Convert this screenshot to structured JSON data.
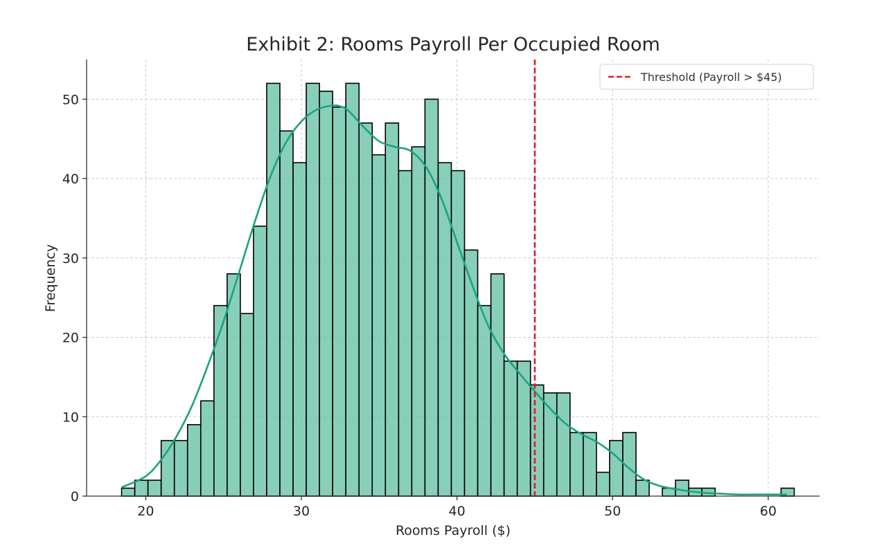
{
  "chart_data": {
    "type": "bar",
    "title": "Exhibit 2: Rooms Payroll Per Occupied Room",
    "xlabel": "Rooms Payroll ($)",
    "ylabel": "Frequency",
    "xlim": [
      16.2,
      63.3
    ],
    "ylim": [
      0,
      55
    ],
    "xticks": [
      20,
      30,
      40,
      50,
      60
    ],
    "yticks": [
      0,
      10,
      20,
      30,
      40,
      50
    ],
    "grid": true,
    "legend_position": "top-right",
    "bin_start": 18.45,
    "bin_width": 0.8475,
    "series": [
      {
        "values": [
          1,
          2,
          2,
          7,
          7,
          9,
          12,
          24,
          28,
          23,
          34,
          52,
          46,
          42,
          52,
          51,
          49,
          52,
          47,
          43,
          47,
          41,
          44,
          50,
          42,
          41,
          31,
          24,
          28,
          17,
          17,
          14,
          13,
          13,
          8,
          8,
          3,
          7,
          8,
          2,
          0,
          1,
          2,
          1,
          1,
          0,
          0,
          0,
          0,
          0,
          1
        ],
        "color": "#66c2a5",
        "fill_opacity": 0.78,
        "edge_color": "#000000"
      }
    ],
    "kde": {
      "color": "#1aa37e",
      "x": [
        18.45,
        20,
        21,
        22,
        23,
        24,
        25,
        26,
        27,
        28,
        29,
        30,
        31,
        32,
        32.5,
        33,
        34,
        35,
        36,
        37,
        38,
        39,
        40,
        41,
        42,
        43,
        44,
        45,
        46,
        47,
        48,
        49,
        50,
        51,
        52,
        53,
        54,
        55,
        56,
        57,
        58,
        59,
        60,
        61.2
      ],
      "y": [
        1.1,
        2.5,
        4.6,
        7.6,
        11.5,
        16.5,
        22,
        28.2,
        34.5,
        40.2,
        44.5,
        47.2,
        48.7,
        49.2,
        49.1,
        48.6,
        46.5,
        44.7,
        44,
        43.5,
        41.5,
        37.5,
        32,
        26.5,
        21.5,
        18,
        15.5,
        13.2,
        11,
        9.1,
        7.8,
        6.8,
        5.4,
        3.6,
        2.1,
        1.3,
        0.9,
        0.6,
        0.4,
        0.3,
        0.2,
        0.2,
        0.2,
        0.2
      ]
    },
    "threshold": {
      "x": 45,
      "color": "#e31a1c",
      "label": "Threshold (Payroll > $45)"
    }
  }
}
